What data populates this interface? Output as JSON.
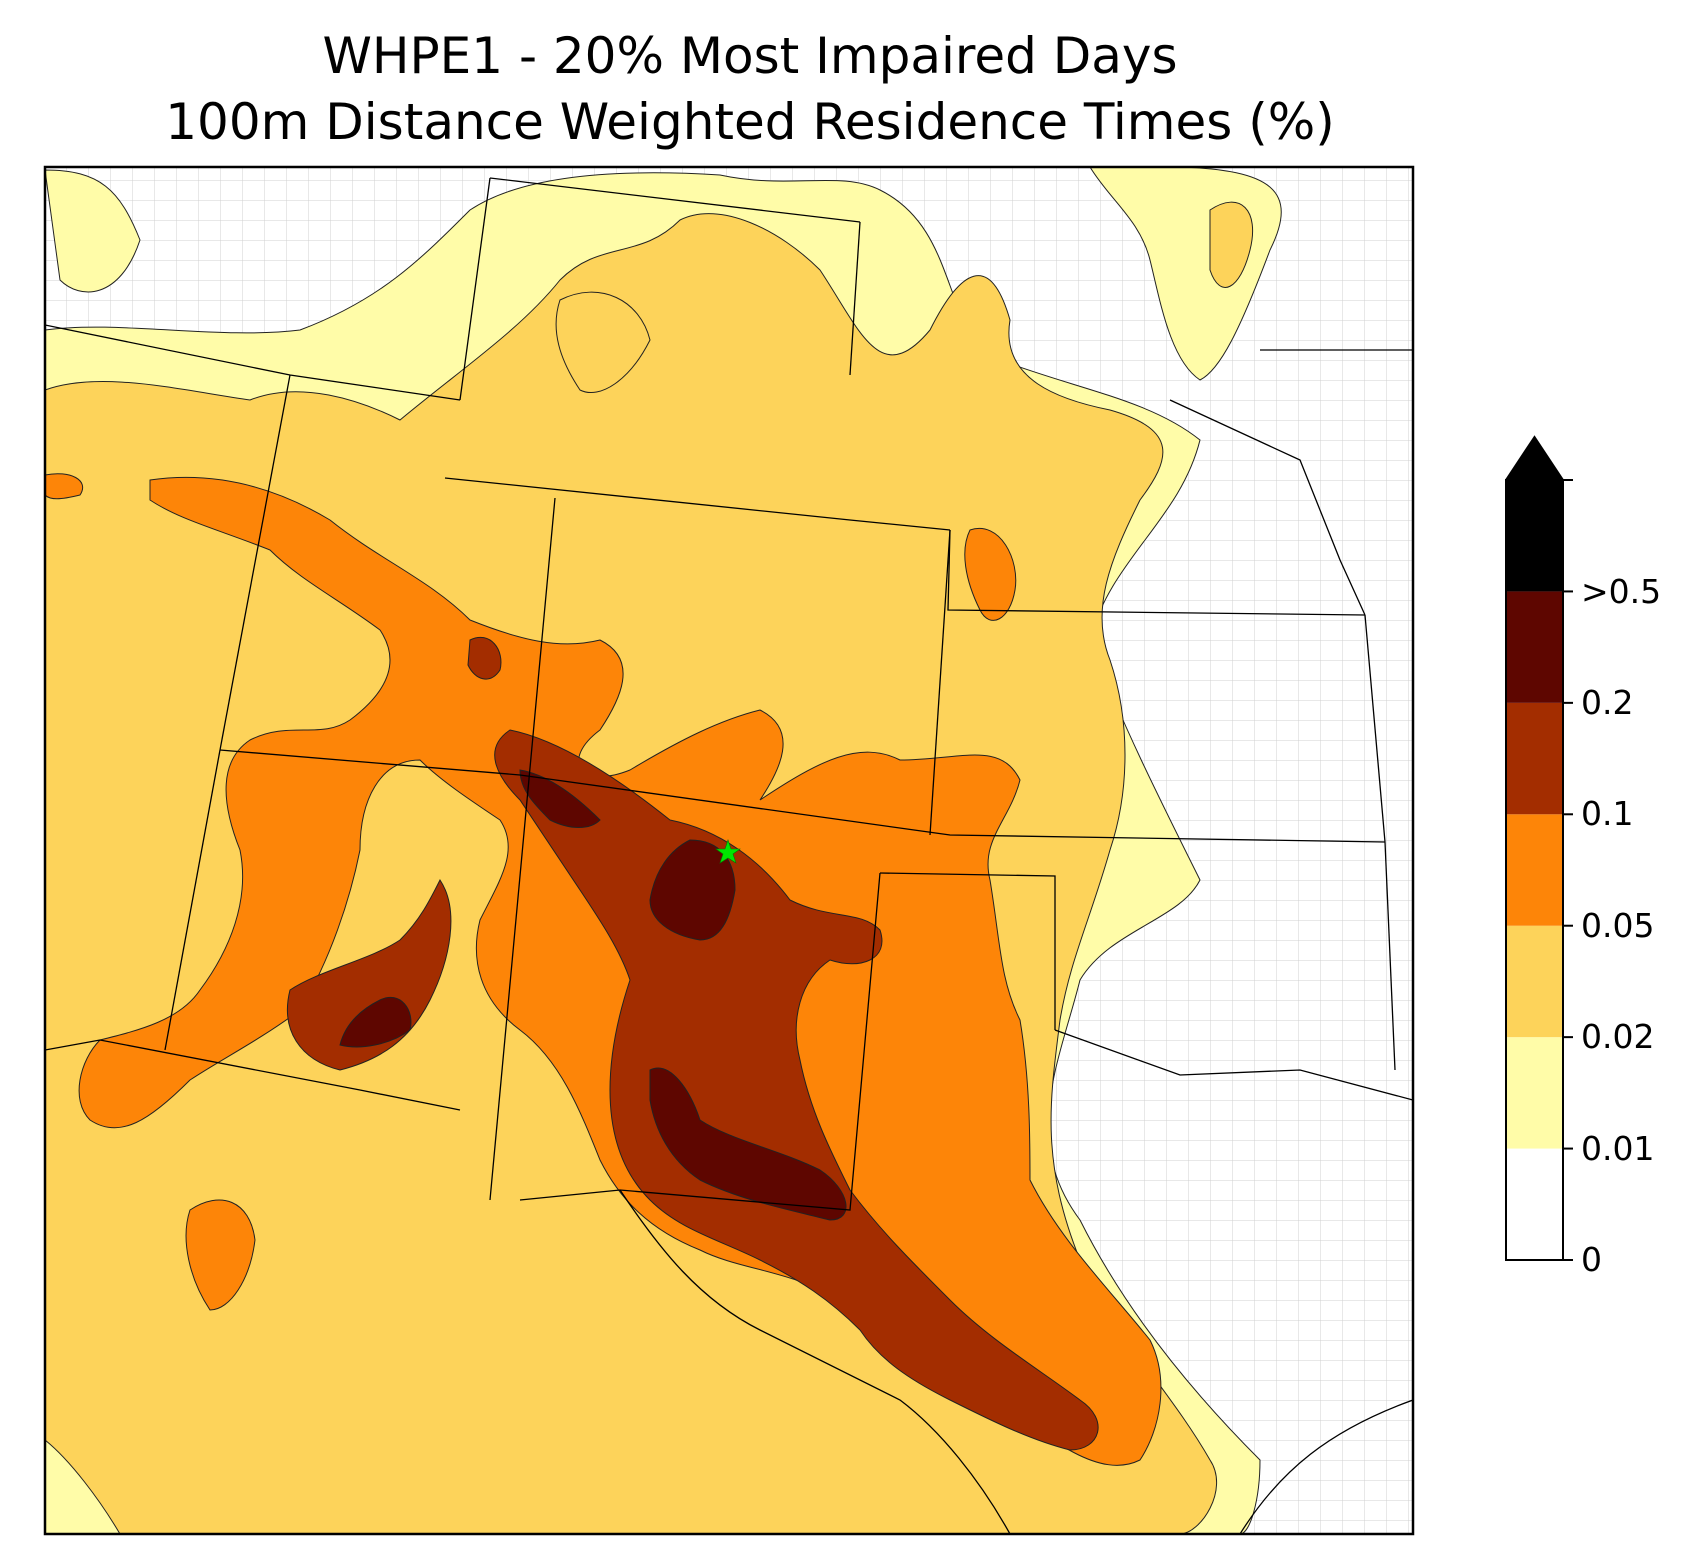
{
  "title": {
    "line1": "WHPE1 - 20% Most Impaired Days",
    "line2": "100m Distance Weighted Residence Times (%)"
  },
  "colorbar": {
    "labels": [
      "0",
      "0.01",
      "0.02",
      "0.05",
      "0.1",
      "0.2",
      ">0.5"
    ],
    "levels": [
      {
        "range": "0-0.01",
        "color": "#ffffff"
      },
      {
        "range": "0.01-0.02",
        "color": "#fffca8"
      },
      {
        "range": "0.02-0.05",
        "color": "#fdd35a"
      },
      {
        "range": "0.05-0.1",
        "color": "#fd8508"
      },
      {
        "range": "0.1-0.2",
        "color": "#a32d00"
      },
      {
        "range": "0.2-0.5",
        "color": "#5e0600"
      },
      {
        "range": ">0.5",
        "color": "#000000"
      }
    ],
    "extend": "max"
  },
  "marker": {
    "icon": "green-star-icon",
    "color": "#00e600"
  }
}
